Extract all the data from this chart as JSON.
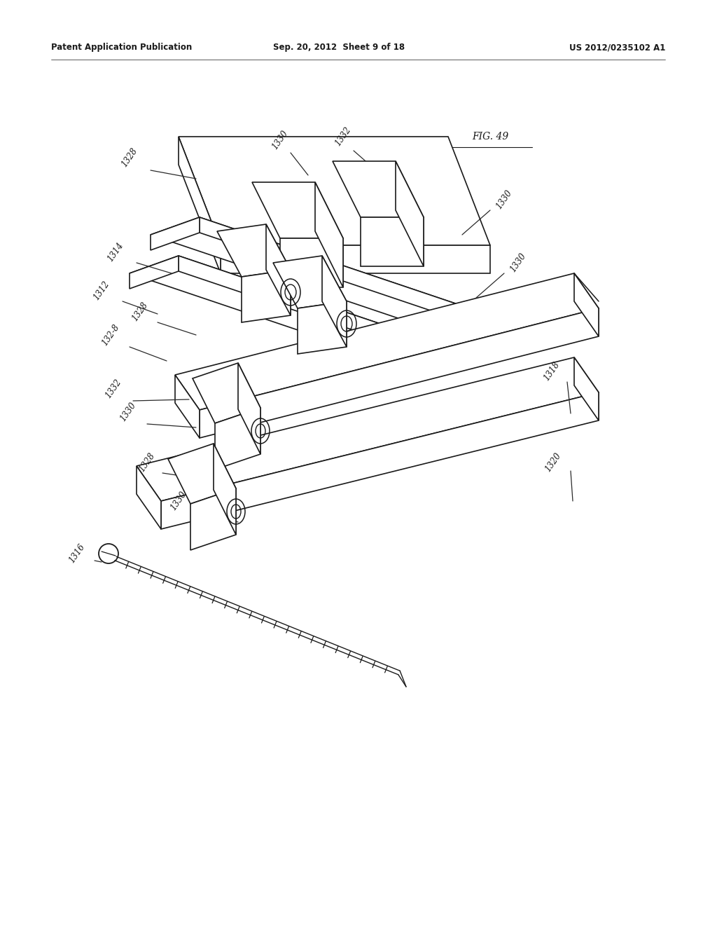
{
  "header_left": "Patent Application Publication",
  "header_mid": "Sep. 20, 2012  Sheet 9 of 18",
  "header_right": "US 2012/0235102 A1",
  "fig_label": "FIG. 49",
  "background_color": "#ffffff",
  "line_color": "#1a1a1a"
}
